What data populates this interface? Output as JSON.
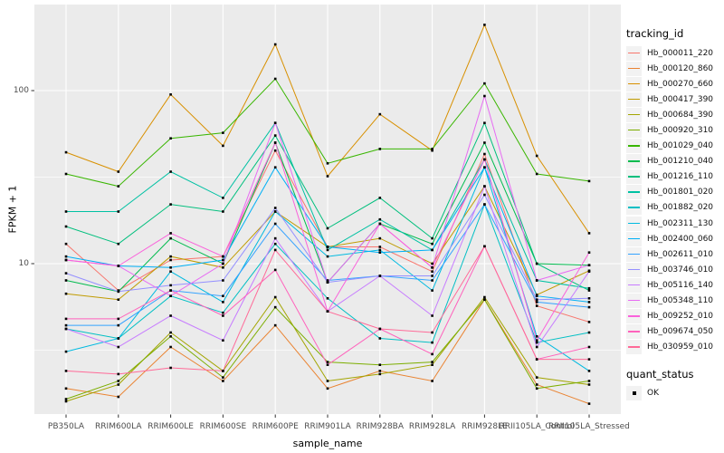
{
  "chart_data": {
    "type": "line",
    "xlabel": "sample_name",
    "ylabel": "FPKM + 1",
    "y_scale": "log10",
    "y_ticks": [
      100,
      10
    ],
    "y_minor_breaks": [
      3.16,
      31.6,
      316
    ],
    "y_domain": [
      1.34,
      310
    ],
    "grid": "on",
    "legend_position": "right",
    "panel_bg": "#EBEBEB",
    "grid_color": "#FFFFFF",
    "point_marker": {
      "shape": "square",
      "color": "#000000",
      "meaning": "quant_status OK"
    },
    "categories": [
      "PB350LA",
      "RRIM600LA",
      "RRIM600LE",
      "RRIM600SE",
      "RRIM600PE",
      "RRIM901LA",
      "RRIM928BA",
      "RRIM928LA",
      "RRIM928LE",
      "RRII105LA_Control",
      "RRII105LA_Stressed"
    ],
    "series": [
      {
        "name": "Hb_000011_220",
        "color": "#F8766D",
        "values": [
          13,
          7,
          10.5,
          11,
          45,
          12.5,
          12.5,
          9,
          43,
          5.7,
          4.6
        ]
      },
      {
        "name": "Hb_000120_860",
        "color": "#EA8331",
        "values": [
          1.9,
          1.7,
          3.3,
          2.1,
          4.4,
          1.9,
          2.4,
          2.1,
          6.2,
          2.0,
          1.55
        ]
      },
      {
        "name": "Hb_000270_660",
        "color": "#D89000",
        "values": [
          44,
          34,
          95,
          48,
          185,
          32,
          73,
          45,
          240,
          42,
          15
        ]
      },
      {
        "name": "Hb_000417_390",
        "color": "#C09B00",
        "values": [
          6.7,
          6.2,
          11,
          9.5,
          20,
          12.5,
          14,
          10,
          28,
          6.6,
          9.1
        ]
      },
      {
        "name": "Hb_000684_390",
        "color": "#A3A500",
        "values": [
          1.6,
          2.0,
          4.0,
          2.4,
          6.4,
          2.1,
          2.3,
          2.6,
          6.4,
          2.2,
          2.0
        ]
      },
      {
        "name": "Hb_000920_310",
        "color": "#7CAE00",
        "values": [
          1.65,
          2.1,
          3.8,
          2.2,
          5.6,
          2.7,
          2.6,
          2.7,
          6.2,
          1.9,
          2.1
        ]
      },
      {
        "name": "Hb_001029_040",
        "color": "#39B600",
        "values": [
          33,
          28,
          53,
          57,
          117,
          38,
          46,
          46,
          110,
          33,
          30
        ]
      },
      {
        "name": "Hb_001210_040",
        "color": "#00BB4E",
        "values": [
          8.0,
          6.9,
          14,
          10,
          50,
          7.8,
          17,
          13,
          50,
          10,
          9.8
        ]
      },
      {
        "name": "Hb_001216_110",
        "color": "#00BF7D",
        "values": [
          16.4,
          13,
          22,
          20,
          55,
          16,
          24,
          14,
          65,
          10,
          7.0
        ]
      },
      {
        "name": "Hb_001801_020",
        "color": "#00C1A3",
        "values": [
          20,
          20,
          34,
          24,
          65,
          12,
          18,
          12,
          40,
          8,
          7.2
        ]
      },
      {
        "name": "Hb_001882_020",
        "color": "#00BFC4",
        "values": [
          4.2,
          3.7,
          6.5,
          5.2,
          13,
          6.3,
          3.7,
          3.5,
          22,
          3.5,
          4.0
        ]
      },
      {
        "name": "Hb_002311_130",
        "color": "#00BAE0",
        "values": [
          3.1,
          3.7,
          9,
          6,
          20,
          11,
          12,
          7,
          36,
          3.8,
          2.4
        ]
      },
      {
        "name": "Hb_002400_060",
        "color": "#00B0F6",
        "values": [
          11,
          9.7,
          9.5,
          10.5,
          36,
          12.5,
          11.6,
          12,
          36,
          6.5,
          6.0
        ]
      },
      {
        "name": "Hb_002611_010",
        "color": "#35A2FF",
        "values": [
          4.4,
          4.4,
          7,
          6.5,
          17,
          8,
          8.5,
          8,
          22,
          6.0,
          5.6
        ]
      },
      {
        "name": "Hb_003746_010",
        "color": "#9590FF",
        "values": [
          8.8,
          6.9,
          7.5,
          8,
          21,
          7.8,
          8.5,
          8.5,
          25,
          6.2,
          6.3
        ]
      },
      {
        "name": "Hb_005116_140",
        "color": "#C77CFF",
        "values": [
          4.2,
          3.3,
          5,
          3.6,
          14,
          5.3,
          8.5,
          5,
          28,
          3.3,
          9
        ]
      },
      {
        "name": "Hb_005348_110",
        "color": "#E76BF3",
        "values": [
          10.5,
          9.7,
          6.5,
          10,
          65,
          7.8,
          17,
          9.5,
          93,
          8,
          9.8
        ]
      },
      {
        "name": "Hb_009252_010",
        "color": "#FA62DB",
        "values": [
          10.5,
          9.7,
          15,
          11,
          50,
          5.3,
          17,
          9.5,
          40,
          3.6,
          11.6
        ]
      },
      {
        "name": "Hb_009674_050",
        "color": "#FF62BC",
        "values": [
          4.8,
          4.8,
          7,
          5,
          9.2,
          2.6,
          4.2,
          3,
          12.6,
          2.8,
          3.3
        ]
      },
      {
        "name": "Hb_030959_010",
        "color": "#FF6A98",
        "values": [
          2.4,
          2.3,
          2.5,
          2.4,
          12,
          5.3,
          4.2,
          4,
          12.6,
          2.8,
          2.8
        ]
      }
    ]
  },
  "legend": {
    "tracking_title": "tracking_id",
    "quant_title": "quant_status",
    "quant_label": "OK"
  }
}
